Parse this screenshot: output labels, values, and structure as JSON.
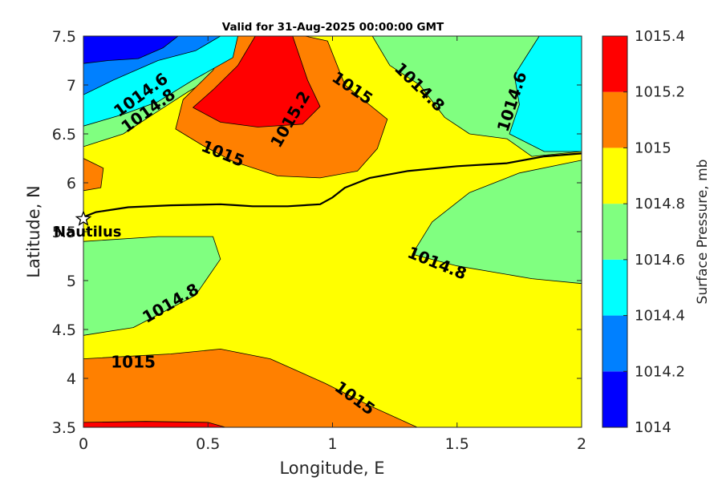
{
  "chart_data": {
    "type": "contour",
    "title": "Valid for 31-Aug-2025 00:00:00 GMT",
    "xlabel": "Longitude, E",
    "ylabel": "Latitude, N",
    "xlim": [
      0,
      2
    ],
    "ylim": [
      3.5,
      7.5
    ],
    "x_ticks": [
      "0",
      "0.5",
      "1",
      "1.5",
      "2"
    ],
    "y_ticks": [
      "3.5",
      "4",
      "4.5",
      "5",
      "5.5",
      "6",
      "6.5",
      "7",
      "7.5"
    ],
    "colorbar": {
      "label": "Surface Pressure, mb",
      "levels": [
        1014,
        1014.2,
        1014.4,
        1014.6,
        1014.8,
        1015,
        1015.2,
        1015.4
      ],
      "tick_labels": [
        "1014",
        "1014.2",
        "1014.4",
        "1014.6",
        "1014.8",
        "1015",
        "1015.2",
        "1015.4"
      ],
      "colors": [
        "#0000ff",
        "#0080ff",
        "#00ffff",
        "#80ff80",
        "#ffff00",
        "#ff8000",
        "#ff0000",
        "#800000"
      ]
    },
    "regions": [
      {
        "level_range": [
          1014.8,
          1015.0
        ],
        "color": "#ffff00",
        "polygon": [
          [
            0,
            3.5
          ],
          [
            2,
            3.5
          ],
          [
            2,
            7.5
          ],
          [
            0,
            7.5
          ]
        ]
      },
      {
        "level_range": [
          1015.0,
          1015.2
        ],
        "color": "#ff8000",
        "polygon": [
          [
            0,
            3.5
          ],
          [
            1.34,
            3.5
          ],
          [
            1.15,
            3.72
          ],
          [
            0.97,
            3.95
          ],
          [
            0.75,
            4.2
          ],
          [
            0.55,
            4.3
          ],
          [
            0.35,
            4.25
          ],
          [
            0,
            4.2
          ]
        ]
      },
      {
        "level_range": [
          1015.2,
          1015.4
        ],
        "color": "#ff0000",
        "polygon": [
          [
            0,
            3.5
          ],
          [
            0.57,
            3.5
          ],
          [
            0.5,
            3.55
          ],
          [
            0.25,
            3.56
          ],
          [
            0,
            3.55
          ]
        ]
      },
      {
        "level_range": [
          1014.6,
          1014.8
        ],
        "color": "#80ff80",
        "polygon": [
          [
            0,
            4.44
          ],
          [
            0.2,
            4.52
          ],
          [
            0.45,
            4.85
          ],
          [
            0.55,
            5.22
          ],
          [
            0.52,
            5.45
          ],
          [
            0.3,
            5.45
          ],
          [
            0,
            5.4
          ]
        ]
      },
      {
        "level_range": [
          1014.6,
          1014.8
        ],
        "color": "#80ff80",
        "polygon": [
          [
            1.32,
            5.27
          ],
          [
            1.5,
            5.15
          ],
          [
            1.8,
            5.02
          ],
          [
            2,
            4.97
          ],
          [
            2,
            6.23
          ],
          [
            1.75,
            6.1
          ],
          [
            1.55,
            5.9
          ],
          [
            1.4,
            5.6
          ]
        ]
      },
      {
        "level_range": [
          1014.6,
          1014.8
        ],
        "color": "#80ff80",
        "polygon": [
          [
            1.16,
            7.5
          ],
          [
            2,
            7.5
          ],
          [
            2,
            6.32
          ],
          [
            1.8,
            6.27
          ],
          [
            1.7,
            6.45
          ],
          [
            1.55,
            6.5
          ],
          [
            1.45,
            6.67
          ],
          [
            1.35,
            7.0
          ],
          [
            1.23,
            7.2
          ]
        ]
      },
      {
        "level_range": [
          1014.6,
          1014.8
        ],
        "color": "#80ff80",
        "polygon": [
          [
            0,
            6.37
          ],
          [
            0.16,
            6.5
          ],
          [
            0.28,
            6.7
          ],
          [
            0.42,
            6.93
          ],
          [
            0.6,
            7.2
          ],
          [
            0.7,
            7.5
          ],
          [
            0,
            7.5
          ]
        ]
      },
      {
        "level_range": [
          1015.0,
          1015.2
        ],
        "color": "#ff8000",
        "polygon": [
          [
            0,
            5.92
          ],
          [
            0.07,
            5.95
          ],
          [
            0.08,
            6.15
          ],
          [
            0,
            6.25
          ]
        ]
      },
      {
        "level_range": [
          1015.0,
          1015.2
        ],
        "color": "#ff8000",
        "polygon": [
          [
            0.37,
            6.55
          ],
          [
            0.48,
            6.38
          ],
          [
            0.6,
            6.22
          ],
          [
            0.78,
            6.07
          ],
          [
            0.95,
            6.05
          ],
          [
            1.1,
            6.12
          ],
          [
            1.18,
            6.35
          ],
          [
            1.22,
            6.65
          ],
          [
            1.05,
            7.0
          ],
          [
            0.98,
            7.45
          ],
          [
            0.89,
            7.5
          ],
          [
            0.6,
            7.5
          ],
          [
            0.52,
            7.15
          ],
          [
            0.4,
            6.85
          ]
        ]
      },
      {
        "level_range": [
          1015.2,
          1015.4
        ],
        "color": "#ff0000",
        "polygon": [
          [
            0.44,
            6.77
          ],
          [
            0.55,
            6.62
          ],
          [
            0.7,
            6.57
          ],
          [
            0.88,
            6.6
          ],
          [
            0.95,
            6.78
          ],
          [
            0.9,
            7.05
          ],
          [
            0.84,
            7.5
          ],
          [
            0.69,
            7.5
          ],
          [
            0.62,
            7.2
          ],
          [
            0.52,
            6.95
          ]
        ]
      },
      {
        "level_range": [
          1014.4,
          1014.6
        ],
        "color": "#00ffff",
        "polygon": [
          [
            0,
            6.58
          ],
          [
            0.16,
            6.7
          ],
          [
            0.3,
            6.83
          ],
          [
            0.44,
            7.05
          ],
          [
            0.6,
            7.28
          ],
          [
            0.62,
            7.5
          ],
          [
            0,
            7.5
          ]
        ]
      },
      {
        "level_range": [
          1014.4,
          1014.6
        ],
        "color": "#00ffff",
        "polygon": [
          [
            1.71,
            6.5
          ],
          [
            1.75,
            6.8
          ],
          [
            1.73,
            7.1
          ],
          [
            1.78,
            7.3
          ],
          [
            1.83,
            7.5
          ],
          [
            2,
            7.5
          ],
          [
            2,
            6.32
          ],
          [
            1.85,
            6.32
          ]
        ]
      },
      {
        "level_range": [
          1014.2,
          1014.4
        ],
        "color": "#0080ff",
        "polygon": [
          [
            0,
            6.9
          ],
          [
            0.12,
            7.05
          ],
          [
            0.3,
            7.25
          ],
          [
            0.45,
            7.35
          ],
          [
            0.55,
            7.5
          ],
          [
            0,
            7.5
          ]
        ]
      },
      {
        "level_range": [
          1014.0,
          1014.2
        ],
        "color": "#0000ff",
        "polygon": [
          [
            0,
            7.22
          ],
          [
            0.1,
            7.25
          ],
          [
            0.22,
            7.27
          ],
          [
            0.32,
            7.38
          ],
          [
            0.38,
            7.5
          ],
          [
            0,
            7.5
          ]
        ]
      }
    ],
    "contour_labels": [
      {
        "text": "1014.6",
        "x": 0.23,
        "y": 6.9,
        "angle": -36
      },
      {
        "text": "1014.8",
        "x": 0.26,
        "y": 6.74,
        "angle": -36
      },
      {
        "text": "1015.2",
        "x": 0.83,
        "y": 6.65,
        "angle": -60
      },
      {
        "text": "1015",
        "x": 1.08,
        "y": 6.97,
        "angle": 34
      },
      {
        "text": "1014.8",
        "x": 1.35,
        "y": 6.98,
        "angle": 44
      },
      {
        "text": "1014.6",
        "x": 1.72,
        "y": 6.83,
        "angle": -72
      },
      {
        "text": "1015",
        "x": 0.56,
        "y": 6.3,
        "angle": 22
      },
      {
        "text": "1014.8",
        "x": 1.42,
        "y": 5.18,
        "angle": 22
      },
      {
        "text": "1014.8",
        "x": 0.35,
        "y": 4.77,
        "angle": -30
      },
      {
        "text": "1015",
        "x": 0.2,
        "y": 4.17,
        "angle": 0
      },
      {
        "text": "1015",
        "x": 1.09,
        "y": 3.8,
        "angle": 36
      }
    ],
    "track": [
      [
        0,
        5.65
      ],
      [
        0.05,
        5.7
      ],
      [
        0.18,
        5.75
      ],
      [
        0.35,
        5.77
      ],
      [
        0.55,
        5.78
      ],
      [
        0.62,
        5.77
      ],
      [
        0.68,
        5.76
      ],
      [
        0.82,
        5.76
      ],
      [
        0.95,
        5.78
      ],
      [
        1.0,
        5.85
      ],
      [
        1.05,
        5.95
      ],
      [
        1.15,
        6.05
      ],
      [
        1.3,
        6.12
      ],
      [
        1.5,
        6.17
      ],
      [
        1.7,
        6.2
      ],
      [
        1.85,
        6.27
      ],
      [
        2,
        6.3
      ]
    ],
    "marker": {
      "label": "Nautilus",
      "x": 0,
      "y": 5.63,
      "symbol": "star"
    }
  }
}
